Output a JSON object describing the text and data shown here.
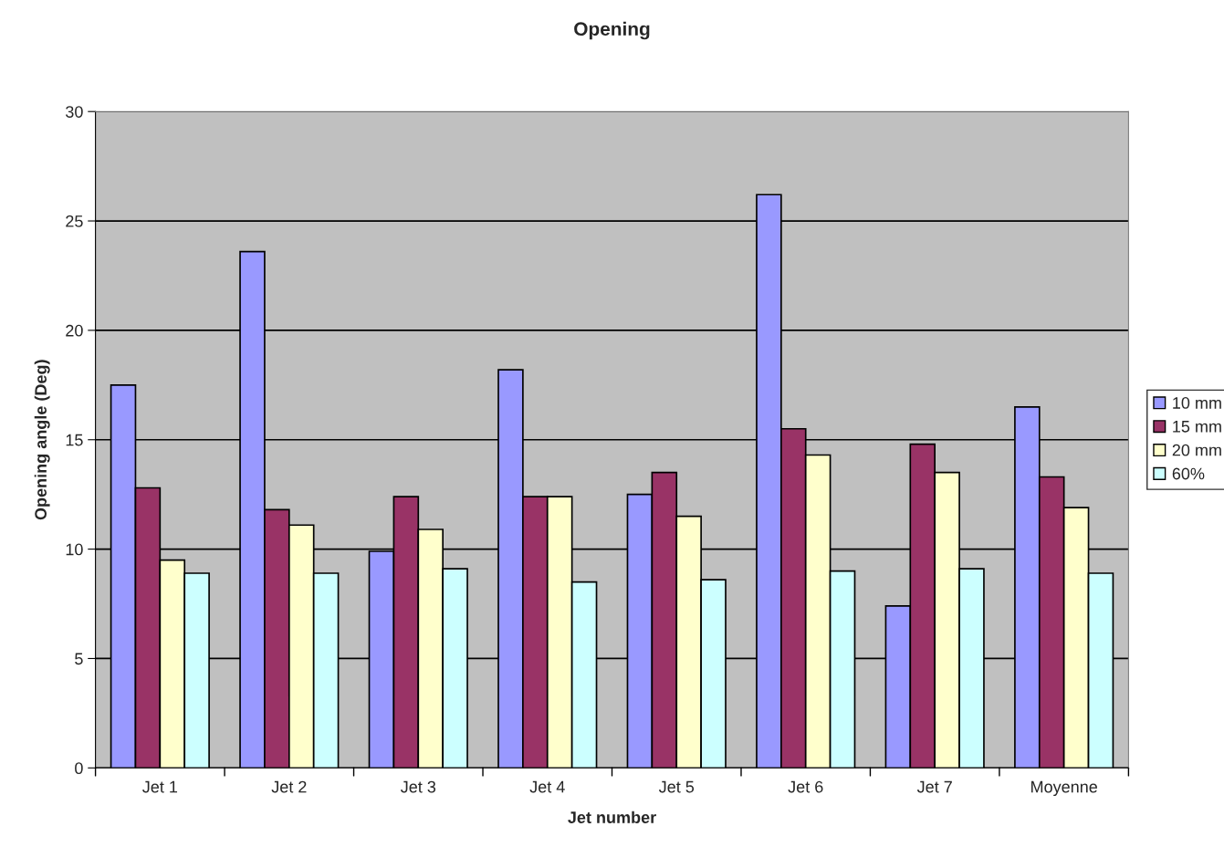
{
  "chart_data": {
    "type": "bar",
    "title": "Opening",
    "xlabel": "Jet number",
    "ylabel": "Opening angle (Deg)",
    "categories": [
      "Jet 1",
      "Jet 2",
      "Jet 3",
      "Jet 4",
      "Jet 5",
      "Jet 6",
      "Jet 7",
      "Moyenne"
    ],
    "series": [
      {
        "name": "10 mm",
        "color": "#9999ff",
        "values": [
          17.5,
          23.6,
          9.9,
          18.2,
          12.5,
          26.2,
          7.4,
          16.5
        ]
      },
      {
        "name": "15 mm",
        "color": "#993366",
        "values": [
          12.8,
          11.8,
          12.4,
          12.4,
          13.5,
          15.5,
          14.8,
          13.3
        ]
      },
      {
        "name": "20 mm",
        "color": "#ffffcc",
        "values": [
          9.5,
          11.1,
          10.9,
          12.4,
          11.5,
          14.3,
          13.5,
          11.9
        ]
      },
      {
        "name": "60%",
        "color": "#ccffff",
        "values": [
          8.9,
          8.9,
          9.1,
          8.5,
          8.6,
          9.0,
          9.1,
          8.9
        ]
      }
    ],
    "ylim": [
      0,
      30
    ],
    "yticks": [
      0,
      5,
      10,
      15,
      20,
      25,
      30
    ],
    "grid": "y",
    "legend": "right"
  }
}
